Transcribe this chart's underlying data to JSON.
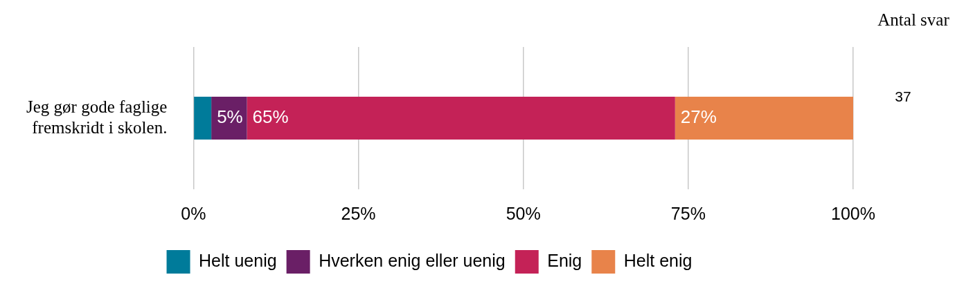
{
  "chart_data": {
    "type": "bar",
    "orientation": "horizontal",
    "stacked": true,
    "categories": [
      "Jeg gør gode faglige fremskridt i skolen."
    ],
    "series": [
      {
        "name": "Helt uenig",
        "color": "#007b9a",
        "values": [
          2.7
        ],
        "value_labels": [
          null
        ]
      },
      {
        "name": "Hverken enig eller uenig",
        "color": "#6a1f66",
        "values": [
          5.4
        ],
        "value_labels": [
          "5%"
        ]
      },
      {
        "name": "Enig",
        "color": "#c42257",
        "values": [
          64.9
        ],
        "value_labels": [
          "65%"
        ]
      },
      {
        "name": "Helt enig",
        "color": "#e8834a",
        "values": [
          27
        ],
        "value_labels": [
          "27%"
        ]
      }
    ],
    "xlim": [
      0,
      100
    ],
    "xticks": [
      {
        "value": 0,
        "label": "0%"
      },
      {
        "value": 25,
        "label": "25%"
      },
      {
        "value": 50,
        "label": "50%"
      },
      {
        "value": 75,
        "label": "75%"
      },
      {
        "value": 100,
        "label": "100%"
      }
    ],
    "grid": "x",
    "legend": "bottom",
    "annotations": [
      "Antal svar",
      "37"
    ]
  }
}
